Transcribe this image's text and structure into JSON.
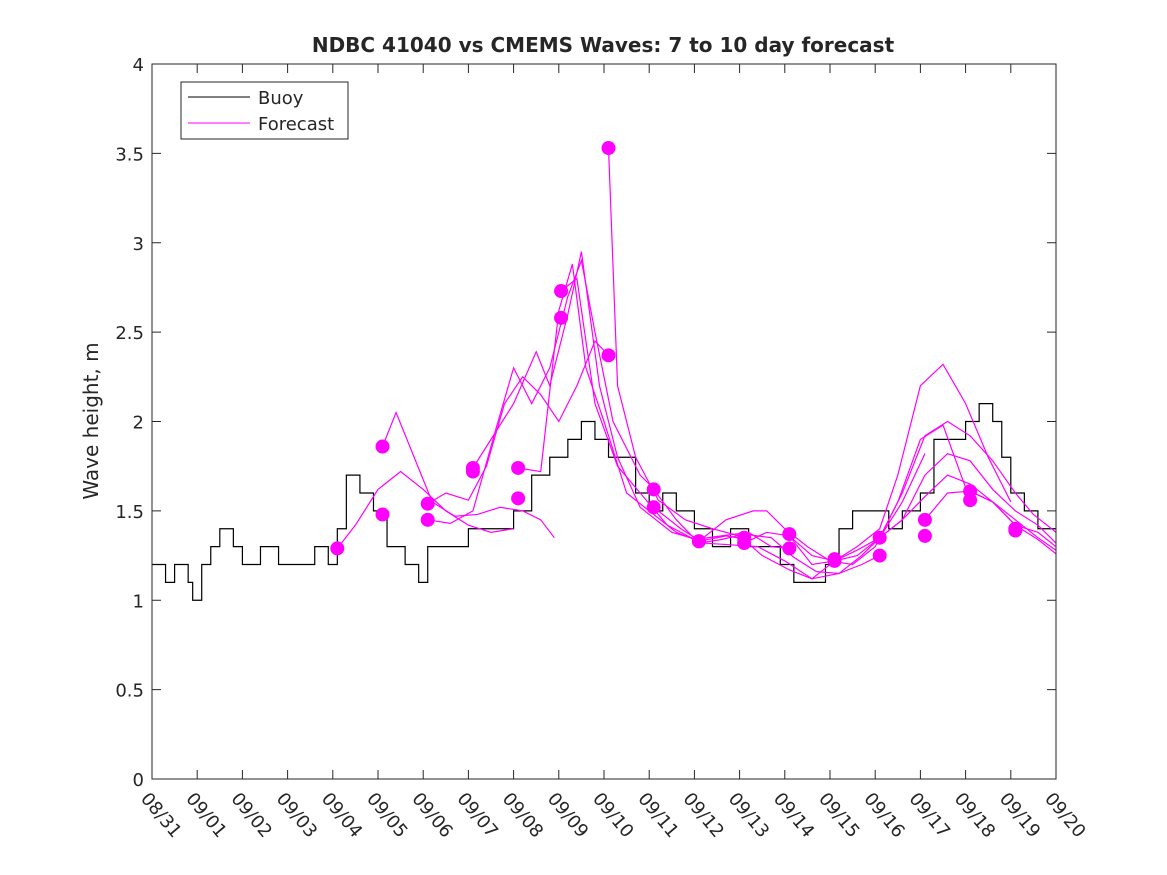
{
  "chart_data": {
    "type": "line",
    "title": "NDBC 41040 vs CMEMS Waves: 7 to 10 day forecast",
    "xlabel": "",
    "ylabel": "Wave height, m",
    "xlim": [
      0,
      20
    ],
    "ylim": [
      0,
      4
    ],
    "x_tick_labels": [
      "08/31",
      "09/01",
      "09/02",
      "09/03",
      "09/04",
      "09/05",
      "09/06",
      "09/07",
      "09/08",
      "09/09",
      "09/10",
      "09/11",
      "09/12",
      "09/13",
      "09/14",
      "09/15",
      "09/16",
      "09/17",
      "09/18",
      "09/19",
      "09/20"
    ],
    "y_ticks": [
      0,
      0.5,
      1,
      1.5,
      2,
      2.5,
      3,
      3.5,
      4
    ],
    "y_tick_labels": [
      "0",
      "0.5",
      "1",
      "1.5",
      "2",
      "2.5",
      "3",
      "3.5",
      "4"
    ],
    "grid": false,
    "legend_position": "top-left",
    "colors": {
      "buoy": "#000000",
      "forecast": "#ff00ff",
      "axis": "#262626"
    },
    "series": [
      {
        "name": "Buoy",
        "style": "step",
        "points": [
          [
            0,
            1.2
          ],
          [
            0.3,
            1.1
          ],
          [
            0.5,
            1.2
          ],
          [
            0.8,
            1.1
          ],
          [
            0.9,
            1.0
          ],
          [
            1.1,
            1.2
          ],
          [
            1.3,
            1.3
          ],
          [
            1.5,
            1.4
          ],
          [
            1.8,
            1.3
          ],
          [
            2.0,
            1.2
          ],
          [
            2.4,
            1.3
          ],
          [
            2.8,
            1.2
          ],
          [
            3.2,
            1.2
          ],
          [
            3.6,
            1.3
          ],
          [
            3.9,
            1.2
          ],
          [
            4.1,
            1.4
          ],
          [
            4.3,
            1.7
          ],
          [
            4.6,
            1.6
          ],
          [
            4.9,
            1.5
          ],
          [
            5.2,
            1.3
          ],
          [
            5.6,
            1.2
          ],
          [
            5.9,
            1.1
          ],
          [
            6.1,
            1.3
          ],
          [
            6.5,
            1.3
          ],
          [
            7.0,
            1.4
          ],
          [
            7.5,
            1.4
          ],
          [
            8.0,
            1.5
          ],
          [
            8.4,
            1.7
          ],
          [
            8.8,
            1.8
          ],
          [
            9.2,
            1.9
          ],
          [
            9.5,
            2.0
          ],
          [
            9.8,
            1.9
          ],
          [
            10.1,
            1.8
          ],
          [
            10.4,
            1.8
          ],
          [
            10.7,
            1.6
          ],
          [
            11.0,
            1.5
          ],
          [
            11.3,
            1.6
          ],
          [
            11.6,
            1.5
          ],
          [
            12.0,
            1.4
          ],
          [
            12.4,
            1.3
          ],
          [
            12.8,
            1.4
          ],
          [
            13.2,
            1.3
          ],
          [
            13.6,
            1.3
          ],
          [
            13.9,
            1.2
          ],
          [
            14.2,
            1.1
          ],
          [
            14.5,
            1.1
          ],
          [
            14.9,
            1.2
          ],
          [
            15.2,
            1.4
          ],
          [
            15.5,
            1.5
          ],
          [
            15.9,
            1.5
          ],
          [
            16.3,
            1.4
          ],
          [
            16.6,
            1.5
          ],
          [
            17.0,
            1.6
          ],
          [
            17.3,
            1.9
          ],
          [
            17.7,
            1.9
          ],
          [
            18.0,
            2.0
          ],
          [
            18.3,
            2.1
          ],
          [
            18.6,
            2.0
          ],
          [
            18.8,
            1.8
          ],
          [
            19.0,
            1.6
          ],
          [
            19.3,
            1.5
          ],
          [
            19.6,
            1.4
          ],
          [
            20.0,
            1.4
          ]
        ]
      },
      {
        "name": "Forecast",
        "style": "line",
        "runs": [
          [
            [
              4.1,
              1.29
            ],
            [
              4.5,
              1.42
            ],
            [
              5.0,
              1.62
            ],
            [
              5.5,
              1.72
            ],
            [
              6.0,
              1.62
            ],
            [
              6.5,
              1.5
            ],
            [
              7.0,
              1.42
            ],
            [
              7.5,
              1.38
            ],
            [
              8.0,
              1.4
            ]
          ],
          [
            [
              5.1,
              1.86
            ],
            [
              5.4,
              2.05
            ],
            [
              5.8,
              1.8
            ],
            [
              6.2,
              1.55
            ],
            [
              6.7,
              1.47
            ],
            [
              7.2,
              1.48
            ],
            [
              7.7,
              1.52
            ],
            [
              8.2,
              1.5
            ],
            [
              8.6,
              1.45
            ],
            [
              8.9,
              1.35
            ]
          ],
          [
            [
              6.1,
              1.54
            ],
            [
              6.5,
              1.6
            ],
            [
              7.0,
              1.56
            ],
            [
              7.4,
              1.75
            ],
            [
              7.8,
              2.1
            ],
            [
              8.2,
              2.25
            ],
            [
              8.6,
              2.15
            ],
            [
              9.0,
              2.0
            ],
            [
              9.4,
              2.2
            ],
            [
              9.8,
              2.45
            ],
            [
              10.1,
              2.37
            ]
          ],
          [
            [
              6.1,
              1.45
            ],
            [
              6.6,
              1.43
            ],
            [
              7.1,
              1.5
            ],
            [
              7.6,
              1.95
            ],
            [
              8.0,
              2.3
            ],
            [
              8.4,
              2.1
            ],
            [
              8.8,
              2.3
            ],
            [
              9.2,
              2.7
            ],
            [
              9.5,
              2.9
            ],
            [
              9.8,
              2.5
            ],
            [
              10.2,
              2.0
            ],
            [
              10.8,
              1.7
            ],
            [
              11.2,
              1.6
            ]
          ],
          [
            [
              7.1,
              1.74
            ],
            [
              7.5,
              1.9
            ],
            [
              8.0,
              2.1
            ],
            [
              8.5,
              2.39
            ],
            [
              8.8,
              2.2
            ],
            [
              9.2,
              2.6
            ],
            [
              9.5,
              2.95
            ],
            [
              9.9,
              2.2
            ],
            [
              10.3,
              1.8
            ],
            [
              10.8,
              1.52
            ],
            [
              11.5,
              1.38
            ],
            [
              12.2,
              1.33
            ]
          ],
          [
            [
              8.1,
              1.74
            ],
            [
              8.6,
              1.72
            ],
            [
              9.0,
              2.62
            ],
            [
              9.3,
              2.88
            ],
            [
              9.6,
              2.3
            ],
            [
              10.0,
              2.0
            ],
            [
              10.5,
              1.6
            ],
            [
              11.0,
              1.5
            ],
            [
              11.6,
              1.38
            ],
            [
              12.1,
              1.33
            ],
            [
              12.7,
              1.36
            ],
            [
              13.2,
              1.34
            ]
          ],
          [
            [
              9.05,
              2.73
            ],
            [
              9.4,
              2.8
            ],
            [
              9.8,
              2.1
            ],
            [
              10.3,
              1.75
            ],
            [
              10.8,
              1.6
            ],
            [
              11.4,
              1.42
            ],
            [
              12.0,
              1.34
            ],
            [
              12.6,
              1.36
            ],
            [
              13.2,
              1.38
            ],
            [
              13.7,
              1.3
            ],
            [
              14.1,
              1.29
            ]
          ],
          [
            [
              10.1,
              3.53
            ],
            [
              10.3,
              2.2
            ],
            [
              10.7,
              1.8
            ],
            [
              11.2,
              1.56
            ],
            [
              11.8,
              1.45
            ],
            [
              12.4,
              1.4
            ],
            [
              13.0,
              1.36
            ],
            [
              13.5,
              1.25
            ],
            [
              14.1,
              1.17
            ],
            [
              14.6,
              1.12
            ],
            [
              15.1,
              1.22
            ]
          ],
          [
            [
              11.1,
              1.62
            ],
            [
              11.6,
              1.45
            ],
            [
              12.1,
              1.32
            ],
            [
              12.6,
              1.34
            ],
            [
              13.1,
              1.37
            ],
            [
              13.7,
              1.35
            ],
            [
              14.2,
              1.24
            ],
            [
              14.7,
              1.16
            ],
            [
              15.2,
              1.15
            ],
            [
              15.7,
              1.2
            ],
            [
              16.1,
              1.25
            ]
          ],
          [
            [
              11.1,
              1.52
            ],
            [
              11.7,
              1.4
            ],
            [
              12.2,
              1.32
            ],
            [
              12.8,
              1.31
            ],
            [
              13.4,
              1.3
            ],
            [
              14.0,
              1.22
            ],
            [
              14.6,
              1.12
            ],
            [
              15.2,
              1.15
            ],
            [
              15.7,
              1.25
            ],
            [
              16.1,
              1.35
            ],
            [
              16.6,
              1.55
            ],
            [
              17.1,
              1.82
            ]
          ],
          [
            [
              12.1,
              1.33
            ],
            [
              12.7,
              1.45
            ],
            [
              13.3,
              1.5
            ],
            [
              13.6,
              1.5
            ],
            [
              14.0,
              1.4
            ],
            [
              14.5,
              1.3
            ],
            [
              15.0,
              1.22
            ],
            [
              15.5,
              1.2
            ],
            [
              16.0,
              1.3
            ],
            [
              16.5,
              1.55
            ],
            [
              17.0,
              1.9
            ],
            [
              17.5,
              1.98
            ],
            [
              18.1,
              1.56
            ]
          ],
          [
            [
              13.1,
              1.32
            ],
            [
              13.6,
              1.38
            ],
            [
              14.1,
              1.36
            ],
            [
              14.6,
              1.2
            ],
            [
              15.1,
              1.22
            ],
            [
              15.6,
              1.3
            ],
            [
              16.1,
              1.4
            ],
            [
              16.5,
              1.7
            ],
            [
              17.0,
              2.2
            ],
            [
              17.5,
              2.32
            ],
            [
              18.0,
              2.1
            ],
            [
              18.5,
              1.8
            ],
            [
              19.0,
              1.55
            ]
          ],
          [
            [
              14.1,
              1.36
            ],
            [
              14.6,
              1.25
            ],
            [
              15.1,
              1.22
            ],
            [
              15.6,
              1.28
            ],
            [
              16.1,
              1.35
            ],
            [
              16.6,
              1.6
            ],
            [
              17.1,
              1.92
            ],
            [
              17.6,
              2.0
            ],
            [
              18.1,
              1.92
            ],
            [
              18.6,
              1.78
            ],
            [
              19.1,
              1.6
            ],
            [
              19.5,
              1.48
            ],
            [
              20.0,
              1.38
            ]
          ],
          [
            [
              15.1,
              1.22
            ],
            [
              15.6,
              1.25
            ],
            [
              16.1,
              1.35
            ],
            [
              16.6,
              1.45
            ],
            [
              17.1,
              1.7
            ],
            [
              17.6,
              1.82
            ],
            [
              18.1,
              1.78
            ],
            [
              18.6,
              1.62
            ],
            [
              19.1,
              1.5
            ],
            [
              19.6,
              1.42
            ],
            [
              20.0,
              1.32
            ]
          ],
          [
            [
              16.1,
              1.35
            ],
            [
              16.6,
              1.45
            ],
            [
              17.1,
              1.58
            ],
            [
              17.6,
              1.7
            ],
            [
              18.1,
              1.65
            ],
            [
              18.6,
              1.55
            ],
            [
              19.1,
              1.42
            ],
            [
              19.6,
              1.38
            ],
            [
              20.0,
              1.3
            ]
          ],
          [
            [
              17.1,
              1.45
            ],
            [
              17.6,
              1.6
            ],
            [
              18.1,
              1.61
            ],
            [
              18.6,
              1.55
            ],
            [
              19.1,
              1.45
            ],
            [
              19.6,
              1.35
            ],
            [
              20.0,
              1.28
            ]
          ],
          [
            [
              18.1,
              1.61
            ],
            [
              18.6,
              1.55
            ],
            [
              19.1,
              1.42
            ],
            [
              19.6,
              1.34
            ],
            [
              20.0,
              1.26
            ]
          ]
        ],
        "markers": [
          [
            4.1,
            1.29
          ],
          [
            5.1,
            1.86
          ],
          [
            5.1,
            1.48
          ],
          [
            6.1,
            1.54
          ],
          [
            6.1,
            1.45
          ],
          [
            7.1,
            1.74
          ],
          [
            7.1,
            1.72
          ],
          [
            8.1,
            1.74
          ],
          [
            8.1,
            1.57
          ],
          [
            9.05,
            2.73
          ],
          [
            9.05,
            2.58
          ],
          [
            10.1,
            3.53
          ],
          [
            10.1,
            2.37
          ],
          [
            11.1,
            1.62
          ],
          [
            11.1,
            1.52
          ],
          [
            12.1,
            1.33
          ],
          [
            12.1,
            1.33
          ],
          [
            13.1,
            1.35
          ],
          [
            13.1,
            1.32
          ],
          [
            14.1,
            1.37
          ],
          [
            14.1,
            1.29
          ],
          [
            15.1,
            1.22
          ],
          [
            15.1,
            1.23
          ],
          [
            16.1,
            1.35
          ],
          [
            16.1,
            1.25
          ],
          [
            17.1,
            1.45
          ],
          [
            17.1,
            1.36
          ],
          [
            18.1,
            1.61
          ],
          [
            18.1,
            1.56
          ],
          [
            19.1,
            1.4
          ],
          [
            19.1,
            1.39
          ]
        ]
      }
    ]
  }
}
